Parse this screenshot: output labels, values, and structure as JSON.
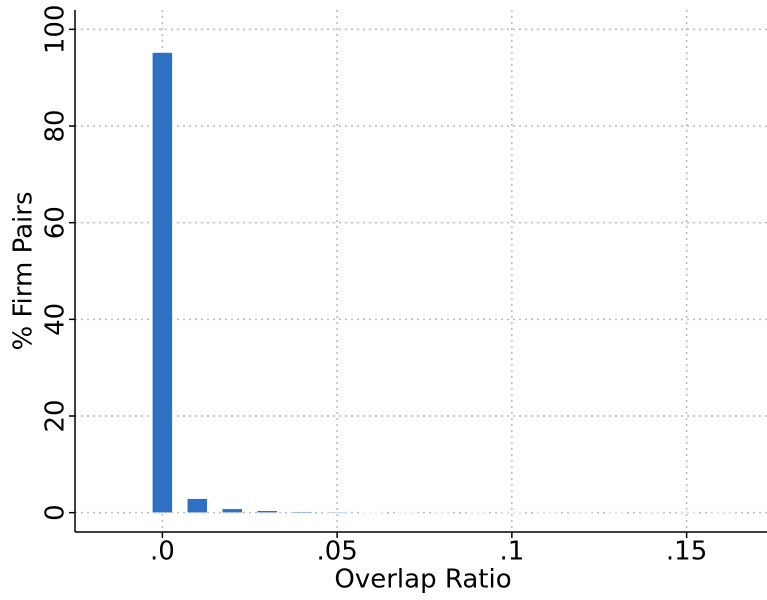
{
  "chart_data": {
    "type": "bar",
    "xlabel": "Overlap Ratio",
    "ylabel": "% Firm Pairs",
    "x": [
      0,
      0.01,
      0.02,
      0.03,
      0.04,
      0.05,
      0.06,
      0.07,
      0.08,
      0.09,
      0.1,
      0.11,
      0.12,
      0.13,
      0.14,
      0.15,
      0.16
    ],
    "values": [
      95.2,
      2.9,
      0.8,
      0.4,
      0.2,
      0.15,
      0.1,
      0.07,
      0.05,
      0.04,
      0.03,
      0.02,
      0.02,
      0.01,
      0.01,
      0.01,
      0.01
    ],
    "color": "#2f6fc4",
    "xlim": [
      -0.025,
      0.173
    ],
    "ylim": [
      -4,
      104
    ],
    "xticks": [
      {
        "value": 0,
        "label": ".0"
      },
      {
        "value": 0.05,
        "label": ".05"
      },
      {
        "value": 0.1,
        "label": ".1"
      },
      {
        "value": 0.15,
        "label": ".15"
      }
    ],
    "yticks": [
      0,
      20,
      40,
      60,
      80,
      100
    ],
    "grid": true
  }
}
